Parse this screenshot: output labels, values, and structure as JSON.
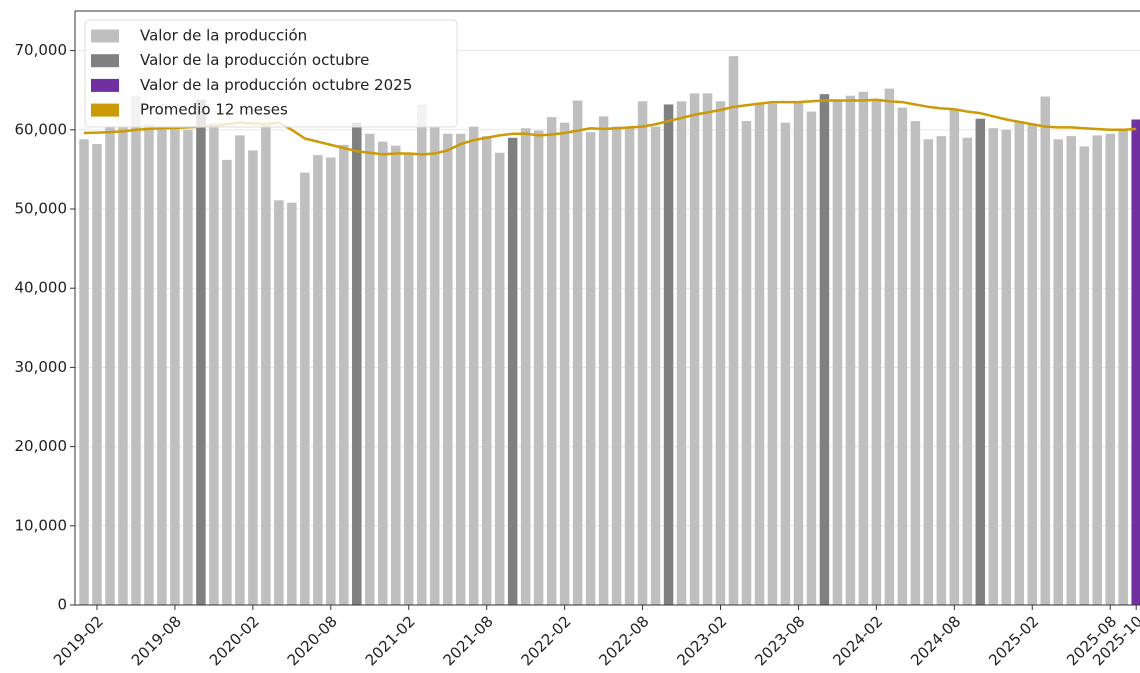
{
  "chart_data": {
    "type": "bar",
    "x": [
      "2019-01",
      "2019-02",
      "2019-03",
      "2019-04",
      "2019-05",
      "2019-06",
      "2019-07",
      "2019-08",
      "2019-09",
      "2019-10",
      "2019-11",
      "2019-12",
      "2020-01",
      "2020-02",
      "2020-03",
      "2020-04",
      "2020-05",
      "2020-06",
      "2020-07",
      "2020-08",
      "2020-09",
      "2020-10",
      "2020-11",
      "2020-12",
      "2021-01",
      "2021-02",
      "2021-03",
      "2021-04",
      "2021-05",
      "2021-06",
      "2021-07",
      "2021-08",
      "2021-09",
      "2021-10",
      "2021-11",
      "2021-12",
      "2022-01",
      "2022-02",
      "2022-03",
      "2022-04",
      "2022-05",
      "2022-06",
      "2022-07",
      "2022-08",
      "2022-09",
      "2022-10",
      "2022-11",
      "2022-12",
      "2023-01",
      "2023-02",
      "2023-03",
      "2023-04",
      "2023-05",
      "2023-06",
      "2023-07",
      "2023-08",
      "2023-09",
      "2023-10",
      "2023-11",
      "2023-12",
      "2024-01",
      "2024-02",
      "2024-03",
      "2024-04",
      "2024-05",
      "2024-06",
      "2024-07",
      "2024-08",
      "2024-09",
      "2024-10",
      "2024-11",
      "2024-12",
      "2025-01",
      "2025-02",
      "2025-03",
      "2025-04",
      "2025-05",
      "2025-06",
      "2025-07",
      "2025-08",
      "2025-09",
      "2025-10"
    ],
    "series": [
      {
        "name": "Valor de la producción",
        "color": "#bfbfbf",
        "values": [
          58800,
          58200,
          60400,
          60300,
          64300,
          60700,
          60300,
          60500,
          60000,
          null,
          60800,
          56200,
          59300,
          57400,
          60900,
          51100,
          50800,
          54600,
          56800,
          56500,
          58100,
          null,
          59500,
          58500,
          58000,
          57100,
          63200,
          60400,
          59500,
          59500,
          60400,
          59200,
          57100,
          null,
          60200,
          59900,
          61600,
          60900,
          63700,
          59700,
          61700,
          60400,
          60400,
          63600,
          60400,
          null,
          63600,
          64600,
          64600,
          63600,
          69300,
          61100,
          63300,
          63300,
          60900,
          63600,
          62300,
          null,
          63700,
          64300,
          64800,
          63700,
          65200,
          62800,
          61100,
          58800,
          59200,
          62600,
          59000,
          null,
          60200,
          60000,
          61100,
          60700,
          64200,
          58800,
          59200,
          57900,
          59300,
          59500,
          59900,
          null
        ]
      },
      {
        "name": "Valor de la producción octubre",
        "color": "#808080",
        "values": [
          null,
          null,
          null,
          null,
          null,
          null,
          null,
          null,
          null,
          63800,
          null,
          null,
          null,
          null,
          null,
          null,
          null,
          null,
          null,
          null,
          null,
          60900,
          null,
          null,
          null,
          null,
          null,
          null,
          null,
          null,
          null,
          null,
          null,
          59000,
          null,
          null,
          null,
          null,
          null,
          null,
          null,
          null,
          null,
          null,
          null,
          63200,
          null,
          null,
          null,
          null,
          null,
          null,
          null,
          null,
          null,
          null,
          null,
          64500,
          null,
          null,
          null,
          null,
          null,
          null,
          null,
          null,
          null,
          null,
          null,
          61400,
          null,
          null,
          null,
          null,
          null,
          null,
          null,
          null,
          null,
          null,
          null,
          null
        ]
      },
      {
        "name": "Valor de la producción octubre 2025",
        "color": "#7030a0",
        "values": [
          null,
          null,
          null,
          null,
          null,
          null,
          null,
          null,
          null,
          null,
          null,
          null,
          null,
          null,
          null,
          null,
          null,
          null,
          null,
          null,
          null,
          null,
          null,
          null,
          null,
          null,
          null,
          null,
          null,
          null,
          null,
          null,
          null,
          null,
          null,
          null,
          null,
          null,
          null,
          null,
          null,
          null,
          null,
          null,
          null,
          null,
          null,
          null,
          null,
          null,
          null,
          null,
          null,
          null,
          null,
          null,
          null,
          null,
          null,
          null,
          null,
          null,
          null,
          null,
          null,
          null,
          null,
          null,
          null,
          null,
          null,
          null,
          null,
          null,
          null,
          null,
          null,
          null,
          null,
          null,
          null,
          61300
        ]
      },
      {
        "name": "Promedio 12 meses",
        "type": "line",
        "color": "#cc9a06",
        "values": [
          59600,
          59650,
          59700,
          59800,
          60000,
          60100,
          60200,
          60250,
          60300,
          60400,
          60500,
          60700,
          60900,
          60800,
          60700,
          60900,
          60000,
          58900,
          58500,
          58100,
          57700,
          57300,
          57100,
          56900,
          57000,
          57000,
          56900,
          57000,
          57400,
          58200,
          58700,
          59000,
          59300,
          59500,
          59500,
          59300,
          59400,
          59600,
          59900,
          60200,
          60100,
          60200,
          60300,
          60400,
          60700,
          61100,
          61500,
          61900,
          62200,
          62500,
          62900,
          63100,
          63300,
          63500,
          63500,
          63500,
          63600,
          63700,
          63700,
          63700,
          63700,
          63800,
          63600,
          63500,
          63200,
          62900,
          62700,
          62600,
          62300,
          62100,
          61700,
          61300,
          61000,
          60700,
          60400,
          60300,
          60300,
          60200,
          60100,
          60000,
          60000,
          60100
        ]
      }
    ],
    "xticks": [
      "2019-02",
      "2019-08",
      "2020-02",
      "2020-08",
      "2021-02",
      "2021-08",
      "2022-02",
      "2022-08",
      "2023-02",
      "2023-08",
      "2024-02",
      "2024-08",
      "2025-02",
      "2025-08",
      "2025-10"
    ],
    "ylim": [
      0,
      75000
    ],
    "yticks": [
      0,
      {
        "value": 10000,
        "label": "10,000"
      },
      {
        "value": 20000,
        "label": "20,000"
      },
      {
        "value": 30000,
        "label": "30,000"
      },
      {
        "value": 40000,
        "label": "40,000"
      },
      {
        "value": 50000,
        "label": "50,000"
      },
      {
        "value": 60000,
        "label": "60,000"
      },
      {
        "value": 70000,
        "label": "70,000"
      }
    ],
    "grid": true,
    "legend": "upper left"
  }
}
